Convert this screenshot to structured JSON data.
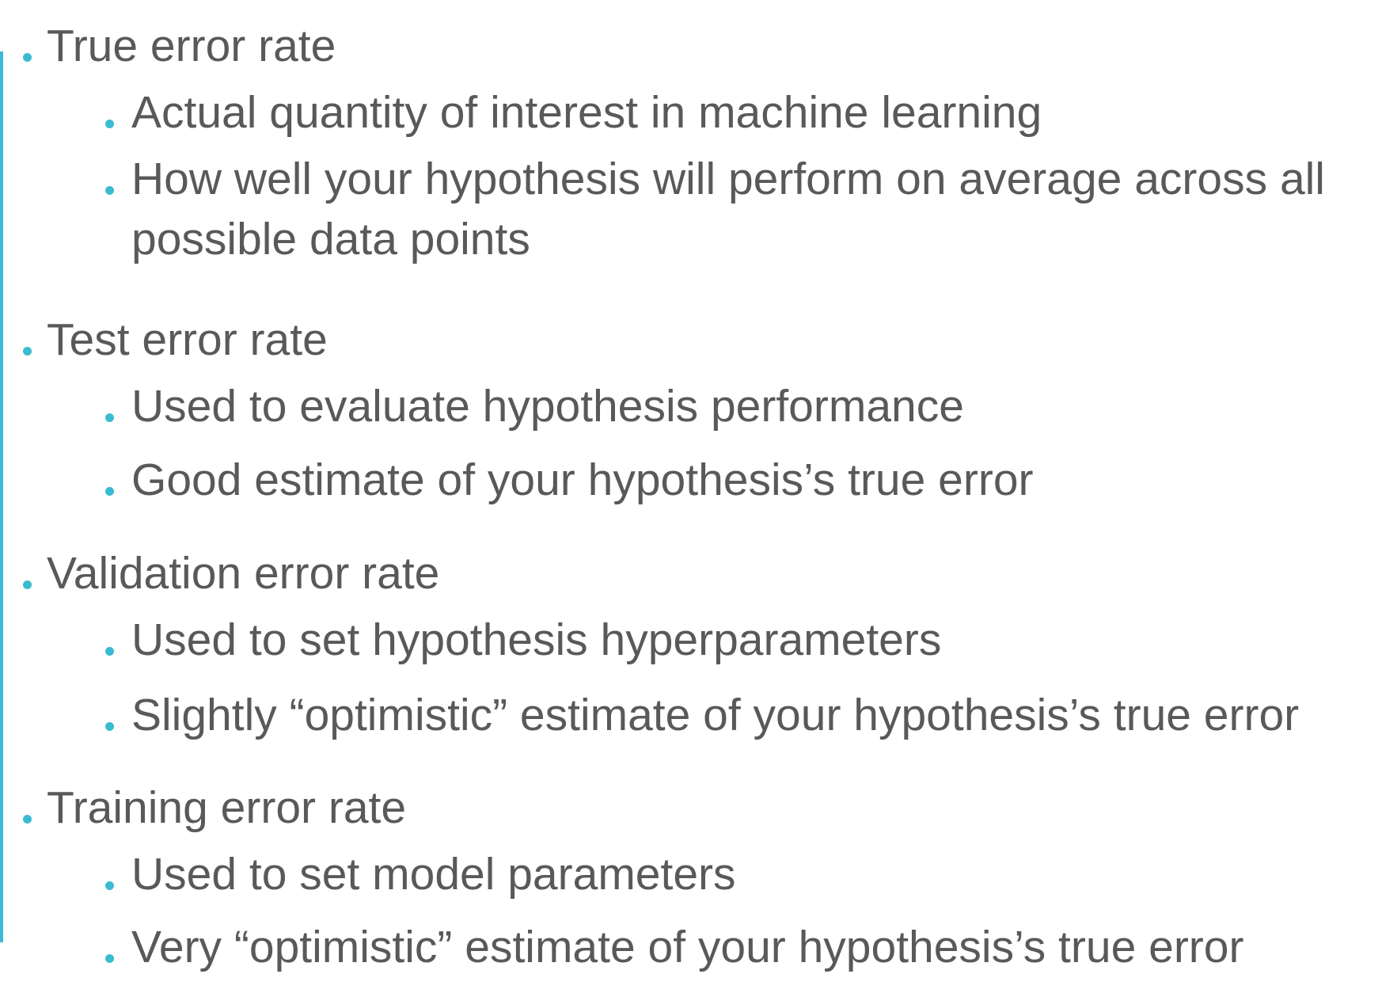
{
  "colors": {
    "accent": "#3bbbd2",
    "text": "#595959",
    "background": "#ffffff"
  },
  "sections": [
    {
      "heading": "True error rate",
      "points": [
        "Actual quantity of interest in machine learning",
        "How well your hypothesis will perform on average across all possible data points"
      ]
    },
    {
      "heading": "Test error rate",
      "points": [
        "Used to evaluate hypothesis performance",
        "Good estimate of your hypothesis’s true error"
      ]
    },
    {
      "heading": "Validation error rate",
      "points": [
        "Used to set hypothesis hyperparameters",
        "Slightly “optimistic” estimate of your hypothesis’s true error"
      ]
    },
    {
      "heading": "Training error rate",
      "points": [
        "Used to set model parameters",
        "Very “optimistic” estimate of your hypothesis’s true error"
      ]
    }
  ]
}
